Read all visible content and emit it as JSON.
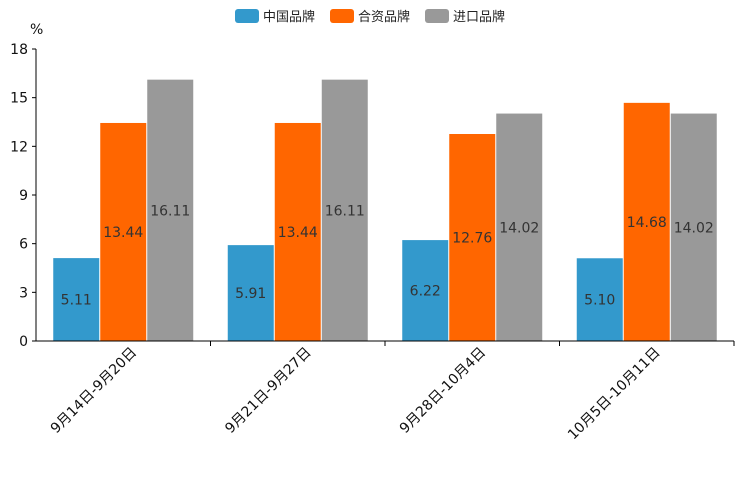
{
  "chart_data": {
    "type": "bar",
    "title": "",
    "xlabel": "",
    "ylabel": "%",
    "ylim": [
      0,
      18
    ],
    "yticks": [
      0,
      3,
      6,
      9,
      12,
      15,
      18
    ],
    "grid": false,
    "legend_position": "top-center",
    "categories": [
      "9月14日-9月20日",
      "9月21日-9月27日",
      "9月28日-10月4日",
      "10月5日-10月11日"
    ],
    "series": [
      {
        "name": "中国品牌",
        "color": "#3399cc",
        "values": [
          5.11,
          5.91,
          6.22,
          5.1
        ]
      },
      {
        "name": "合资品牌",
        "color": "#ff6600",
        "values": [
          13.44,
          13.44,
          12.76,
          14.68
        ]
      },
      {
        "name": "进口品牌",
        "color": "#999999",
        "values": [
          16.11,
          16.11,
          14.02,
          14.02
        ]
      }
    ]
  }
}
